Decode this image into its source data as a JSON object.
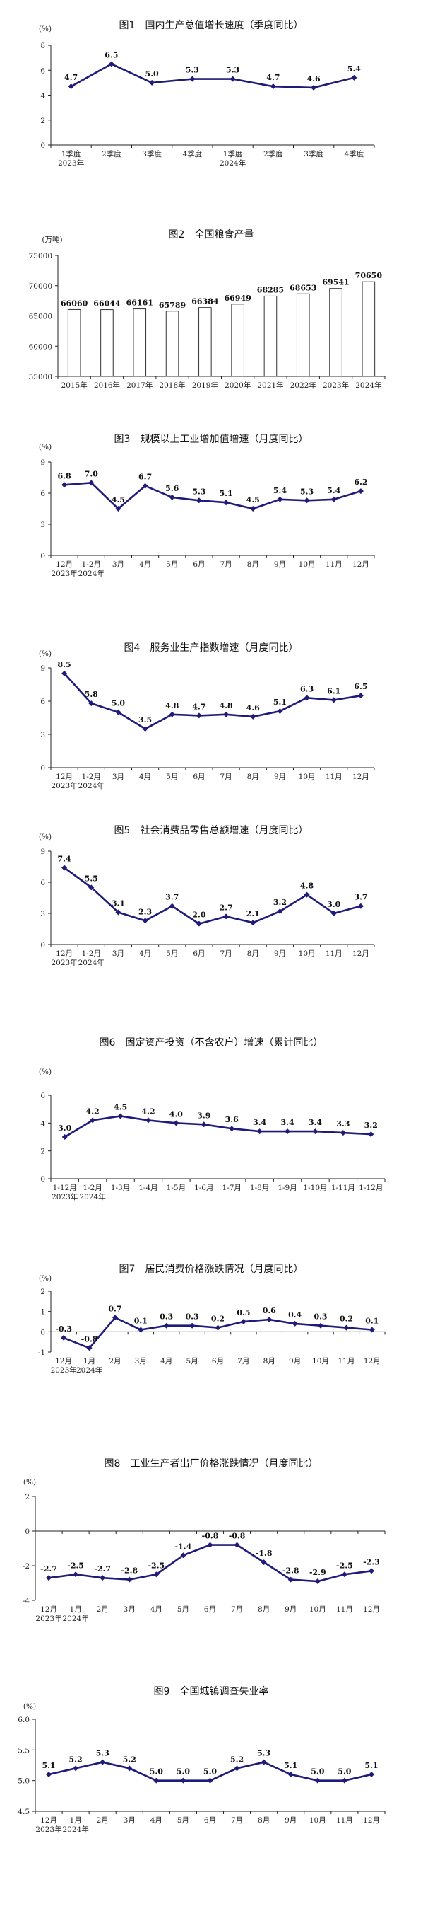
{
  "chart_data": [
    {
      "type": "line",
      "title": "图1　国内生产总值增长速度（季度同比）",
      "unit": "(%)",
      "categories": [
        "1季度",
        "2季度",
        "3季度",
        "4季度",
        "1季度",
        "2季度",
        "3季度",
        "4季度"
      ],
      "sublabels": [
        "2023年",
        "",
        "",
        "",
        "2024年",
        "",
        "",
        ""
      ],
      "values": [
        4.7,
        6.5,
        5.0,
        5.3,
        5.3,
        4.7,
        4.6,
        5.4
      ],
      "value_labels": [
        "4.7",
        "6.5",
        "5.0",
        "5.3",
        "5.3",
        "4.7",
        "4.6",
        "5.4"
      ],
      "ylim": [
        0,
        8
      ],
      "yticks": [
        "0",
        "2",
        "4",
        "6",
        "8"
      ],
      "grid": false
    },
    {
      "type": "bar",
      "title": "图2　全国粮食产量",
      "unit": "(万吨)",
      "categories": [
        "2015年",
        "2016年",
        "2017年",
        "2018年",
        "2019年",
        "2020年",
        "2021年",
        "2022年",
        "2023年",
        "2024年"
      ],
      "values": [
        66060,
        66044,
        66161,
        65789,
        66384,
        66949,
        68285,
        68653,
        69541,
        70650
      ],
      "value_labels": [
        "66060",
        "66044",
        "66161",
        "65789",
        "66384",
        "66949",
        "68285",
        "68653",
        "69541",
        "70650"
      ],
      "ylim": [
        55000,
        75000
      ],
      "yticks": [
        "55000",
        "60000",
        "65000",
        "70000",
        "75000"
      ],
      "grid": false
    },
    {
      "type": "line",
      "title": "图3　规模以上工业增加值增速（月度同比）",
      "unit": "(%)",
      "categories": [
        "12月",
        "1-2月",
        "3月",
        "4月",
        "5月",
        "6月",
        "7月",
        "8月",
        "9月",
        "10月",
        "11月",
        "12月"
      ],
      "sublabels": [
        "2023年",
        "2024年",
        "",
        "",
        "",
        "",
        "",
        "",
        "",
        "",
        "",
        ""
      ],
      "values": [
        6.8,
        7.0,
        4.5,
        6.7,
        5.6,
        5.3,
        5.1,
        4.5,
        5.4,
        5.3,
        5.4,
        6.2
      ],
      "value_labels": [
        "6.8",
        "7.0",
        "4.5",
        "6.7",
        "5.6",
        "5.3",
        "5.1",
        "4.5",
        "5.4",
        "5.3",
        "5.4",
        "6.2"
      ],
      "ylim": [
        0,
        9
      ],
      "yticks": [
        "0",
        "3",
        "6",
        "9"
      ],
      "grid": false
    },
    {
      "type": "line",
      "title": "图4　服务业生产指数增速（月度同比）",
      "unit": "(%)",
      "categories": [
        "12月",
        "1-2月",
        "3月",
        "4月",
        "5月",
        "6月",
        "7月",
        "8月",
        "9月",
        "10月",
        "11月",
        "12月"
      ],
      "sublabels": [
        "2023年",
        "2024年",
        "",
        "",
        "",
        "",
        "",
        "",
        "",
        "",
        "",
        ""
      ],
      "values": [
        8.5,
        5.8,
        5.0,
        3.5,
        4.8,
        4.7,
        4.8,
        4.6,
        5.1,
        6.3,
        6.1,
        6.5
      ],
      "value_labels": [
        "8.5",
        "5.8",
        "5.0",
        "3.5",
        "4.8",
        "4.7",
        "4.8",
        "4.6",
        "5.1",
        "6.3",
        "6.1",
        "6.5"
      ],
      "ylim": [
        0,
        9
      ],
      "yticks": [
        "0",
        "3",
        "6",
        "9"
      ],
      "grid": false
    },
    {
      "type": "line",
      "title": "图5　社会消费品零售总额增速（月度同比）",
      "unit": "(%)",
      "categories": [
        "12月",
        "1-2月",
        "3月",
        "4月",
        "5月",
        "6月",
        "7月",
        "8月",
        "9月",
        "10月",
        "11月",
        "12月"
      ],
      "sublabels": [
        "2023年",
        "2024年",
        "",
        "",
        "",
        "",
        "",
        "",
        "",
        "",
        "",
        ""
      ],
      "values": [
        7.4,
        5.5,
        3.1,
        2.3,
        3.7,
        2.0,
        2.7,
        2.1,
        3.2,
        4.8,
        3.0,
        3.7
      ],
      "value_labels": [
        "7.4",
        "5.5",
        "3.1",
        "2.3",
        "3.7",
        "2.0",
        "2.7",
        "2.1",
        "3.2",
        "4.8",
        "3.0",
        "3.7"
      ],
      "ylim": [
        0,
        9
      ],
      "yticks": [
        "0",
        "3",
        "6",
        "9"
      ],
      "grid": false
    },
    {
      "type": "line",
      "title": "图6　固定资产投资（不含农户）增速（累计同比）",
      "unit": "(%)",
      "categories": [
        "1-12月",
        "1-2月",
        "1-3月",
        "1-4月",
        "1-5月",
        "1-6月",
        "1-7月",
        "1-8月",
        "1-9月",
        "1-10月",
        "1-11月",
        "1-12月"
      ],
      "sublabels": [
        "2023年",
        "2024年",
        "",
        "",
        "",
        "",
        "",
        "",
        "",
        "",
        "",
        ""
      ],
      "values": [
        3.0,
        4.2,
        4.5,
        4.2,
        4.0,
        3.9,
        3.6,
        3.4,
        3.4,
        3.4,
        3.3,
        3.2
      ],
      "value_labels": [
        "3.0",
        "4.2",
        "4.5",
        "4.2",
        "4.0",
        "3.9",
        "3.6",
        "3.4",
        "3.4",
        "3.4",
        "3.3",
        "3.2"
      ],
      "ylim": [
        0,
        6
      ],
      "yticks": [
        "0",
        "2",
        "4",
        "6"
      ],
      "grid": false
    },
    {
      "type": "line",
      "title": "图7　居民消费价格涨跌情况（月度同比）",
      "unit": "(%)",
      "categories": [
        "12月",
        "1月",
        "2月",
        "3月",
        "4月",
        "5月",
        "6月",
        "7月",
        "8月",
        "9月",
        "10月",
        "11月",
        "12月"
      ],
      "sublabels": [
        "2023年",
        "2024年",
        "",
        "",
        "",
        "",
        "",
        "",
        "",
        "",
        "",
        "",
        ""
      ],
      "values": [
        -0.3,
        -0.8,
        0.7,
        0.1,
        0.3,
        0.3,
        0.2,
        0.5,
        0.6,
        0.4,
        0.3,
        0.2,
        0.1
      ],
      "value_labels": [
        "-0.3",
        "-0.8",
        "0.7",
        "0.1",
        "0.3",
        "0.3",
        "0.2",
        "0.5",
        "0.6",
        "0.4",
        "0.3",
        "0.2",
        "0.1"
      ],
      "ylim": [
        -1,
        2
      ],
      "yticks": [
        "-1",
        "0",
        "1",
        "2"
      ],
      "grid": false
    },
    {
      "type": "line",
      "title": "图8　工业生产者出厂价格涨跌情况（月度同比）",
      "unit": "(%)",
      "categories": [
        "12月",
        "1月",
        "2月",
        "3月",
        "4月",
        "5月",
        "6月",
        "7月",
        "8月",
        "9月",
        "10月",
        "11月",
        "12月"
      ],
      "sublabels": [
        "2023年",
        "2024年",
        "",
        "",
        "",
        "",
        "",
        "",
        "",
        "",
        "",
        "",
        ""
      ],
      "values": [
        -2.7,
        -2.5,
        -2.7,
        -2.8,
        -2.5,
        -1.4,
        -0.8,
        -0.8,
        -1.8,
        -2.8,
        -2.9,
        -2.5,
        -2.3
      ],
      "value_labels": [
        "-2.7",
        "-2.5",
        "-2.7",
        "-2.8",
        "-2.5",
        "-1.4",
        "-0.8",
        "-0.8",
        "-1.8",
        "-2.8",
        "-2.9",
        "-2.5",
        "-2.3"
      ],
      "ylim": [
        -4,
        2
      ],
      "yticks": [
        "-4",
        "-2",
        "0",
        "2"
      ],
      "grid": false
    },
    {
      "type": "line",
      "title": "图9　全国城镇调查失业率",
      "unit": "(%)",
      "categories": [
        "12月",
        "1月",
        "2月",
        "3月",
        "4月",
        "5月",
        "6月",
        "7月",
        "8月",
        "9月",
        "10月",
        "11月",
        "12月"
      ],
      "sublabels": [
        "2023年",
        "2024年",
        "",
        "",
        "",
        "",
        "",
        "",
        "",
        "",
        "",
        "",
        ""
      ],
      "values": [
        5.1,
        5.2,
        5.3,
        5.2,
        5.0,
        5.0,
        5.0,
        5.2,
        5.3,
        5.1,
        5.0,
        5.0,
        5.1
      ],
      "value_labels": [
        "5.1",
        "5.2",
        "5.3",
        "5.2",
        "5.0",
        "5.0",
        "5.0",
        "5.2",
        "5.3",
        "5.1",
        "5.0",
        "5.0",
        "5.1"
      ],
      "ylim": [
        4.5,
        6.0
      ],
      "yticks": [
        "4.5",
        "5.0",
        "5.5",
        "6.0"
      ],
      "grid": false
    }
  ],
  "colors": {
    "line": "#1f1b7a",
    "bar_fill": "#ffffff",
    "bar_stroke": "#333333",
    "axis": "#222222"
  }
}
